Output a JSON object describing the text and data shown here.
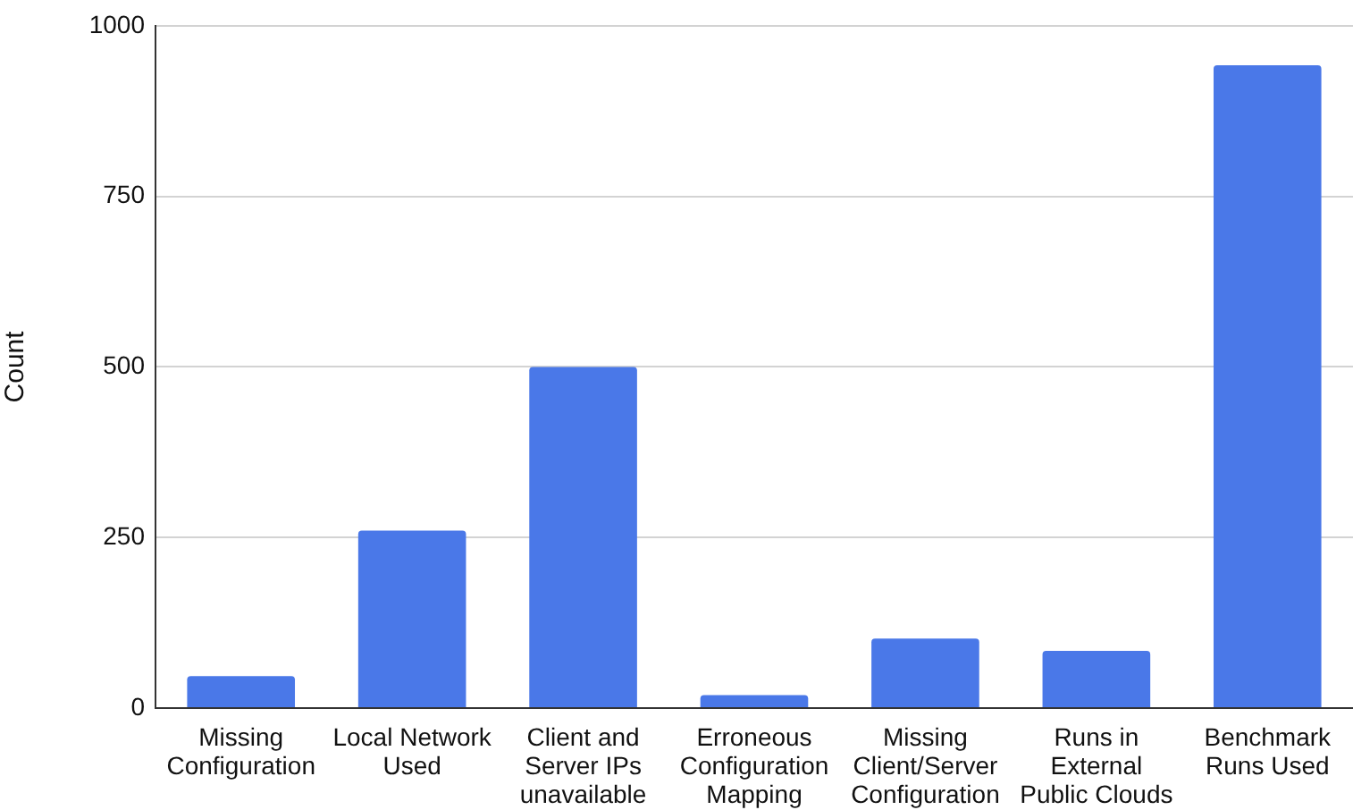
{
  "chart_data": {
    "type": "bar",
    "categories": [
      "Missing Configuration",
      "Local Network Used",
      "Client and Server IPs unavailable",
      "Erroneous Configuration Mapping",
      "Missing Client/Server Configuration",
      "Runs in External Public Clouds",
      "Benchmark Runs Used"
    ],
    "values": [
      47,
      260,
      500,
      19,
      102,
      84,
      942
    ],
    "color": "#4a78e8",
    "ylabel": "Count",
    "ylim": [
      0,
      1000
    ],
    "yticks": [
      0,
      250,
      500,
      750,
      1000
    ],
    "grid": "y"
  }
}
